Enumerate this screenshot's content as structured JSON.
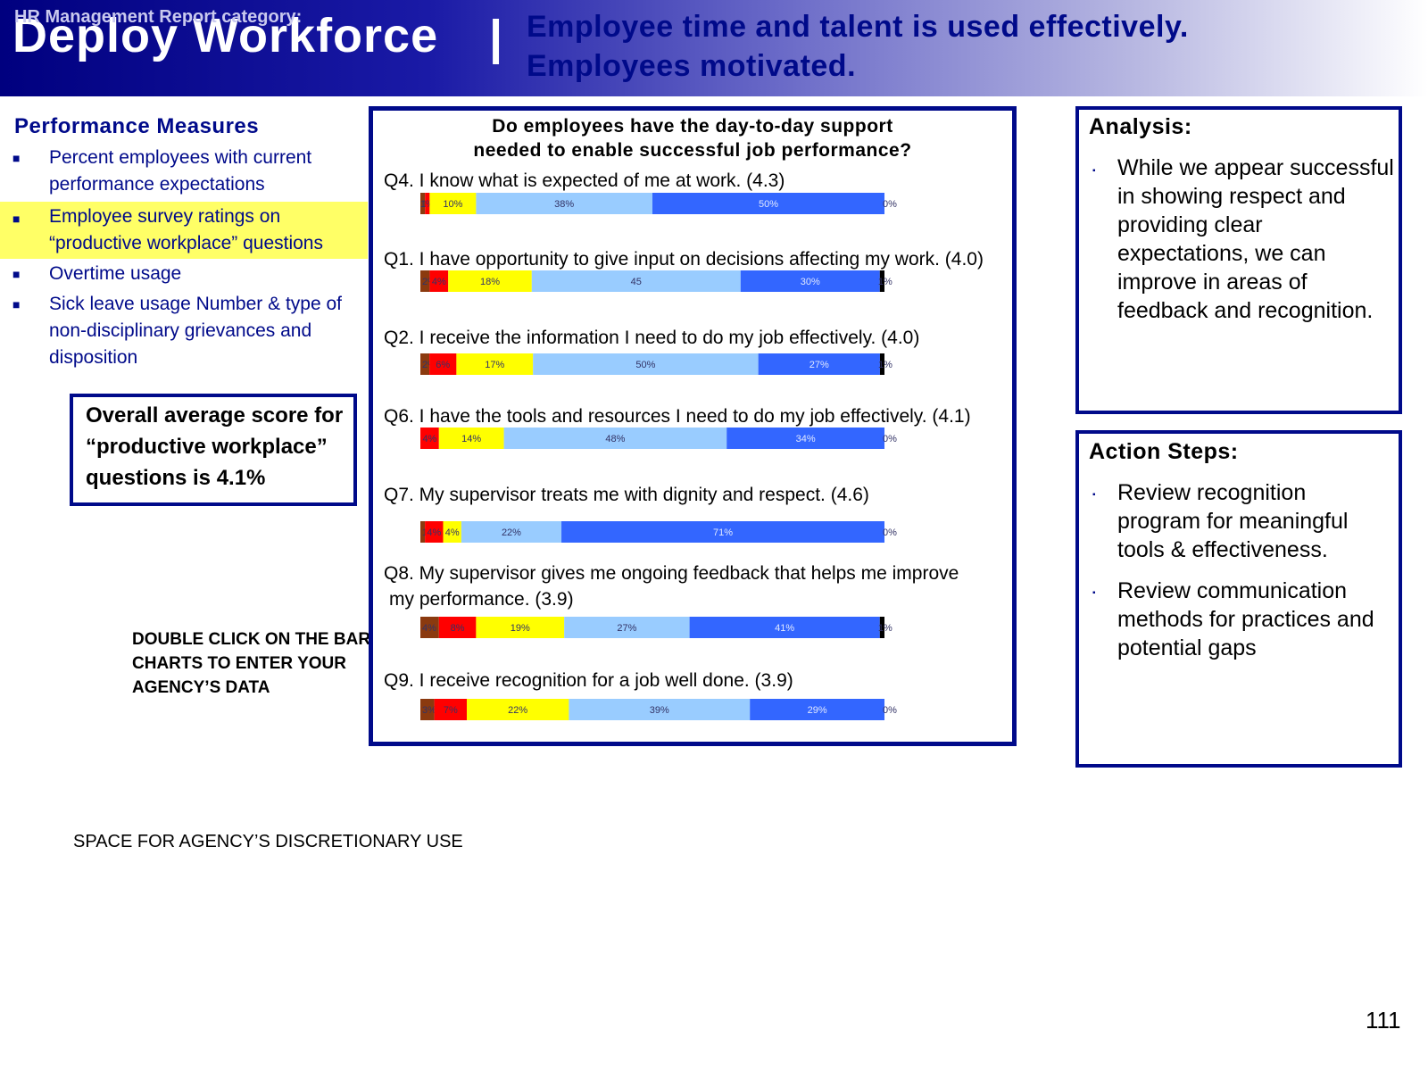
{
  "header": {
    "category": "HR Management Report category:",
    "title": "Deploy Workforce",
    "separator": "|",
    "goal_line1": "Employee time and talent is used effectively.",
    "goal_line2": "Employees motivated."
  },
  "performance_measures": {
    "title": "Performance Measures",
    "bullet": "■",
    "items": [
      {
        "text": "Percent employees with current performance expectations",
        "highlighted": false
      },
      {
        "text": "Employee survey ratings on “productive workplace” questions",
        "highlighted": true
      },
      {
        "text": "Overtime usage",
        "highlighted": false
      },
      {
        "text": "Sick leave usage Number & type of non-disciplinary grievances and disposition",
        "highlighted": false
      }
    ]
  },
  "score_box": {
    "text": "Overall average score for “productive workplace” questions is 4.1%"
  },
  "double_click_note": "DOUBLE CLICK ON THE BAR CHARTS TO ENTER YOUR AGENCY’S DATA",
  "space_note": "SPACE FOR AGENCY’S DISCRETIONARY USE",
  "page_number": "111",
  "analysis": {
    "title": "Analysis:",
    "bullet": "▪",
    "items": [
      "While we appear successful in showing respect and providing clear expectations, we can improve in areas of feedback and recognition."
    ]
  },
  "action_steps": {
    "title": "Action Steps:",
    "bullet": "▪",
    "items": [
      "Review recognition program for meaningful tools & effectiveness.",
      "Review communication methods for practices and potential gaps"
    ]
  },
  "chart_data": {
    "type": "bar",
    "orientation": "horizontal",
    "stacked": true,
    "title_line1": "Do employees have the day-to-day support",
    "title_line2": "needed to enable successful job performance?",
    "legend": "none",
    "grid": false,
    "segment_colors": [
      "#8b3a0f",
      "#ff0000",
      "#ffff00",
      "#99ccff",
      "#3366ff",
      "#000000"
    ],
    "questions": [
      {
        "label": "Q4. I know what is expected of me at work. (4.3)",
        "values": [
          1,
          1,
          10,
          38,
          50,
          0
        ],
        "labels": [
          "1%",
          "1%",
          "10%",
          "38%",
          "50%",
          "0%"
        ]
      },
      {
        "label": "Q1. I have opportunity to give input on decisions affecting my work. (4.0)",
        "values": [
          2,
          4,
          18,
          45,
          30,
          1
        ],
        "labels": [
          "2%",
          "4%",
          "18%",
          "45",
          "30%",
          "1%"
        ]
      },
      {
        "label": "Q2. I receive the information I need to do my job effectively. (4.0)",
        "values": [
          2,
          6,
          17,
          50,
          27,
          1
        ],
        "labels": [
          "2%",
          "6%",
          "17%",
          "50%",
          "27%",
          "1%"
        ]
      },
      {
        "label": "Q6. I have the tools and resources I need to do my job effectively. (4.1)",
        "values": [
          0,
          4,
          14,
          48,
          34,
          0
        ],
        "labels": [
          "0%",
          "4%",
          "14%",
          "48%",
          "34%",
          "0%"
        ]
      },
      {
        "label": "Q7. My supervisor treats me with dignity and respect. (4.6)",
        "values": [
          1,
          4,
          4,
          22,
          71,
          0
        ],
        "labels": [
          "1%",
          "4%",
          "4%",
          "22%",
          "71%",
          "0%"
        ]
      },
      {
        "label": "Q8. My supervisor gives me ongoing feedback that helps me improve my performance. (3.9)",
        "label_line1": "Q8. My supervisor gives me ongoing feedback that helps me improve",
        "label_line2": "my performance. (3.9)",
        "values": [
          4,
          8,
          19,
          27,
          41,
          1
        ],
        "labels": [
          "4%",
          "8%",
          "19%",
          "27%",
          "41%",
          "1%"
        ]
      },
      {
        "label": "Q9. I receive recognition for a job well done. (3.9)",
        "values": [
          3,
          7,
          22,
          39,
          29,
          0
        ],
        "labels": [
          "3%",
          "7%",
          "22%",
          "39%",
          "29%",
          "0%"
        ]
      }
    ]
  }
}
